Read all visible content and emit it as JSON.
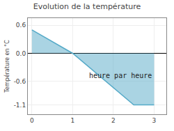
{
  "chart_data": {
    "type": "area",
    "title": "Evolution de la température",
    "xlabel": "heure par heure",
    "ylabel": "Température en °C",
    "x": [
      0,
      1,
      2.5,
      3
    ],
    "values": [
      0.5,
      0.0,
      -1.1,
      -1.1
    ],
    "color": "#55aac8",
    "xlim": [
      -0.1,
      3.3
    ],
    "ylim": [
      -1.3,
      0.75
    ],
    "xticks": [
      0,
      1,
      2,
      3
    ],
    "yticks": [
      -1.1,
      -0.6,
      {
        "value": 0,
        "label": "0.0"
      },
      0.6
    ],
    "grid": true
  }
}
